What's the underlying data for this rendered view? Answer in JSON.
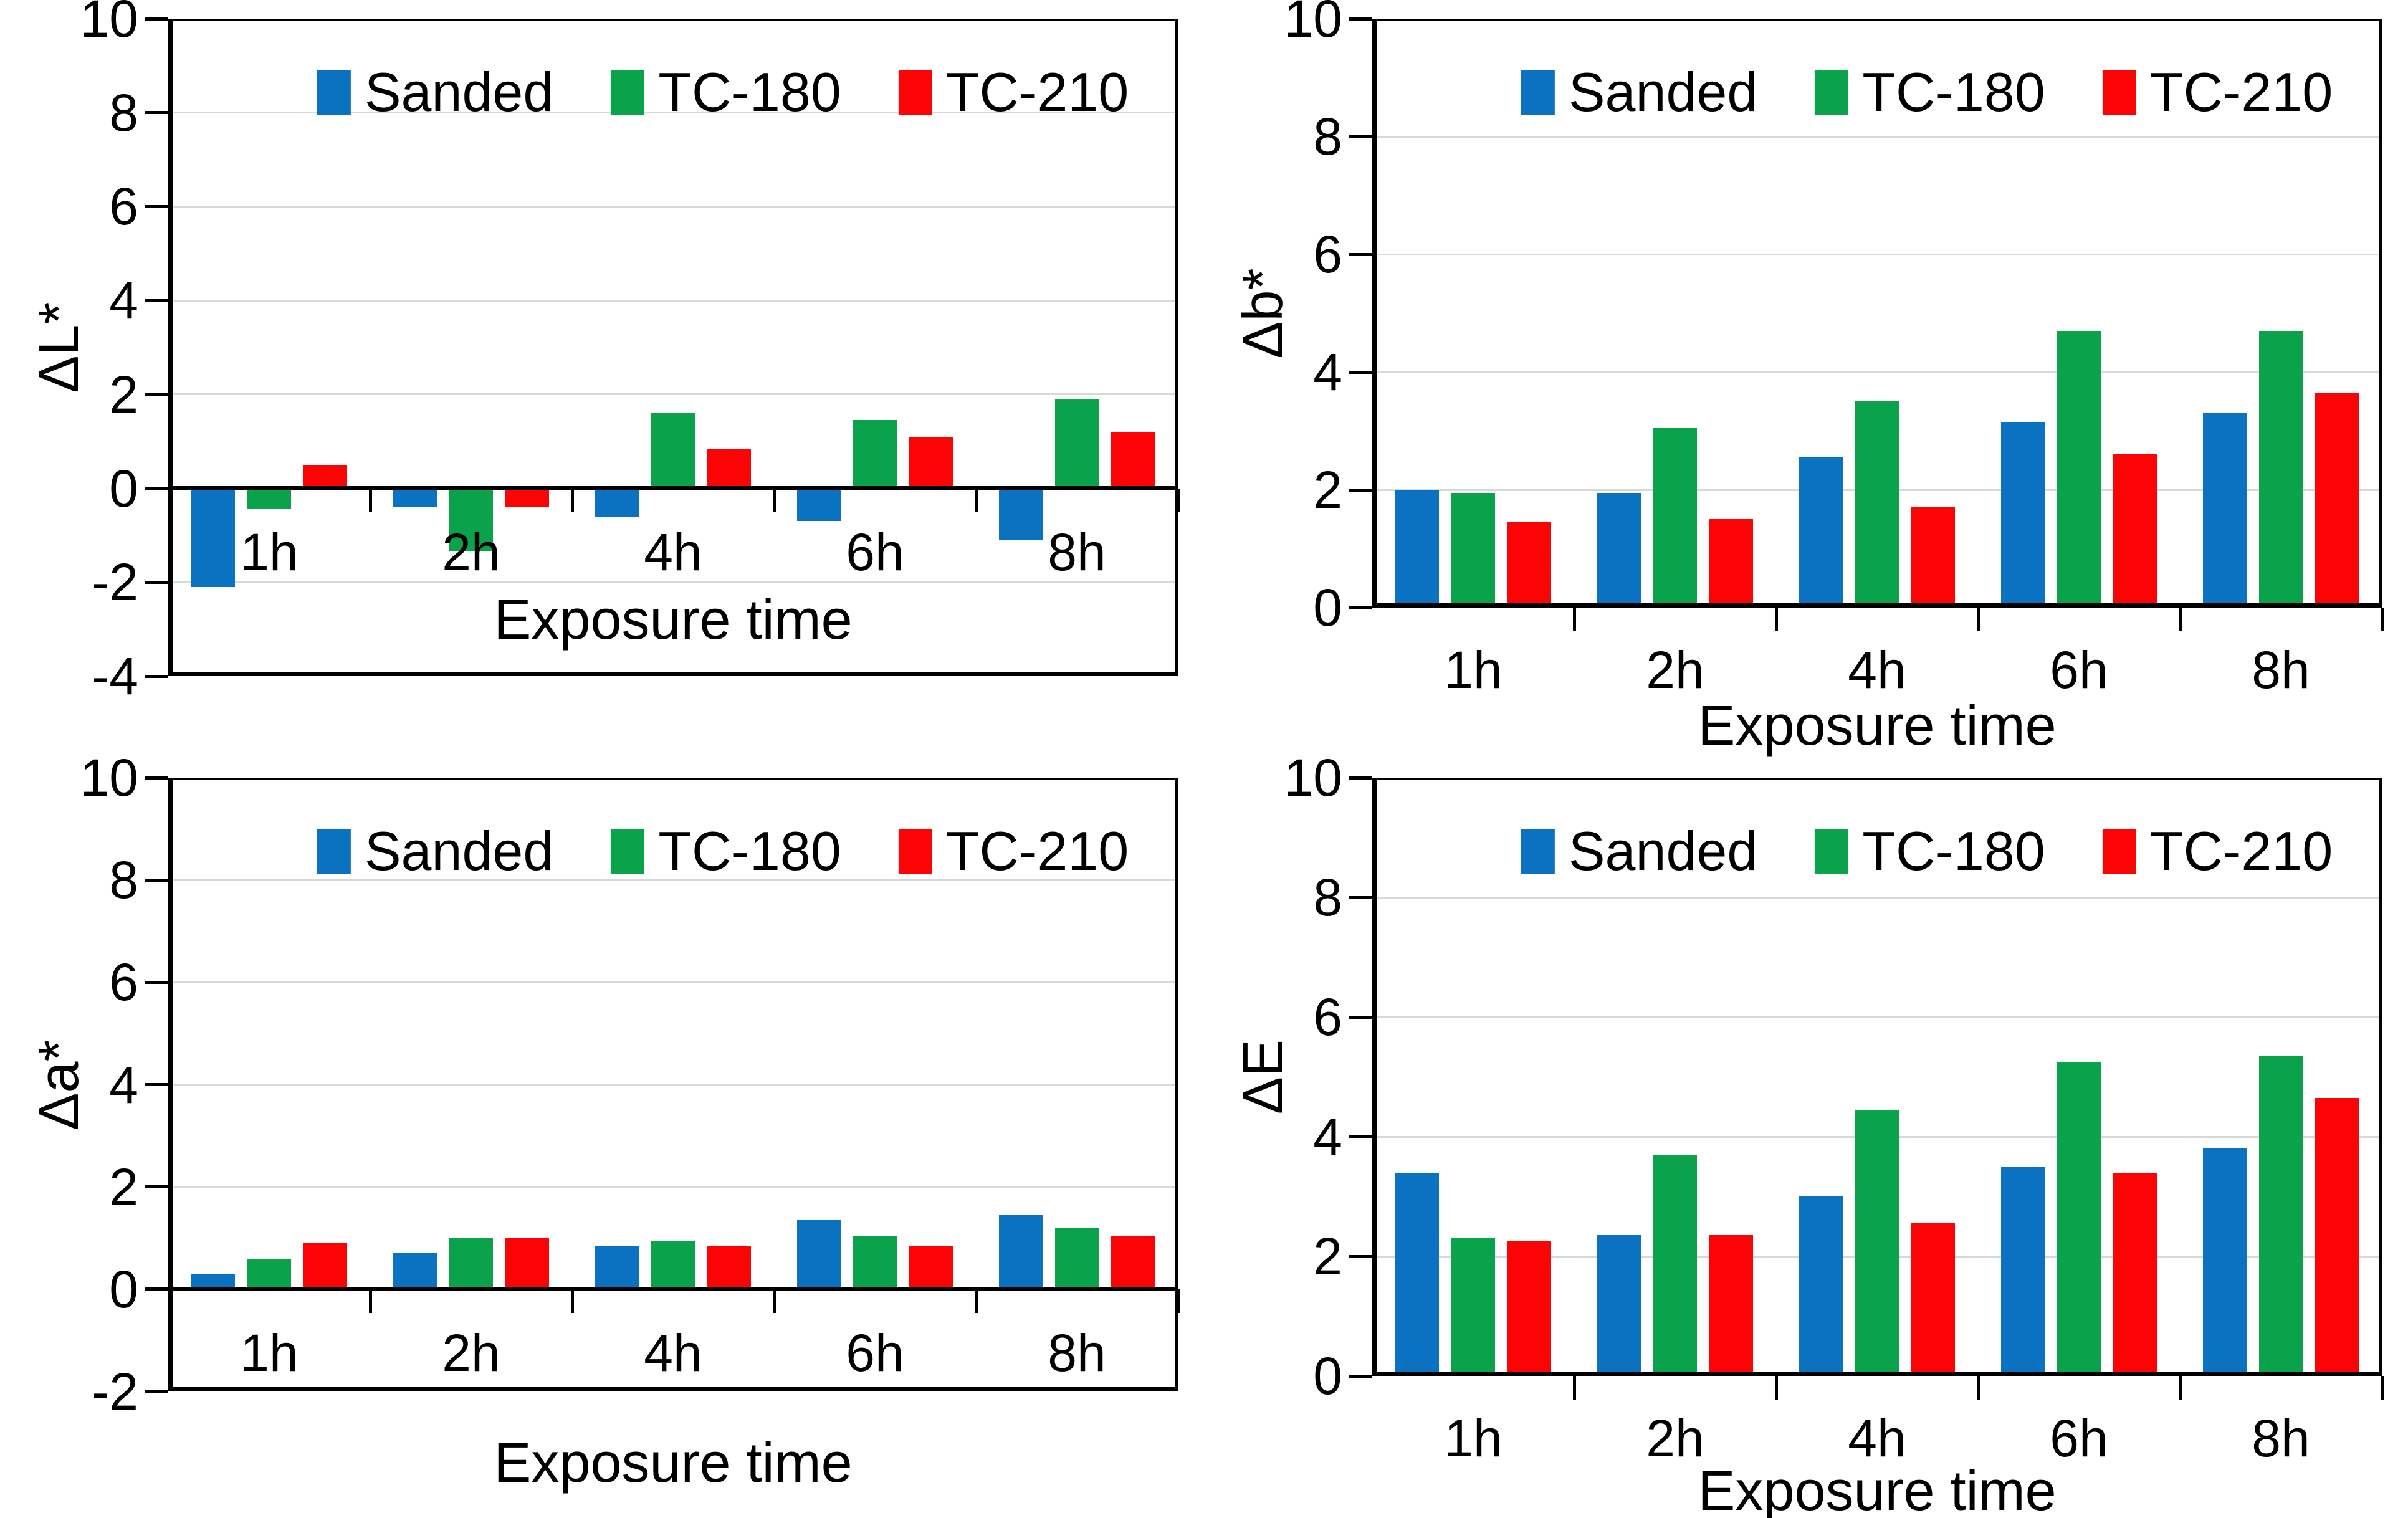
{
  "figure": {
    "background": "#ffffff",
    "x_axis_title": "Exposure time",
    "categories": [
      "1h",
      "2h",
      "4h",
      "6h",
      "8h"
    ],
    "legend_labels": [
      "Sanded",
      "TC-180",
      "TC-210"
    ]
  },
  "colors": {
    "sanded": "#0b72c2",
    "tc180": "#0aa24a",
    "tc210": "#fc0406",
    "gridline": "#d8d8d8",
    "axis": "#000000",
    "text": "#000000"
  },
  "chart_data": [
    {
      "type": "bar",
      "title": "",
      "ylabel": "ΔL*",
      "xlabel": "Exposure time",
      "categories": [
        "1h",
        "2h",
        "4h",
        "6h",
        "8h"
      ],
      "series": [
        {
          "name": "Sanded",
          "color": "#0b72c2",
          "values": [
            -2.1,
            -0.4,
            -0.6,
            -0.7,
            -1.1
          ]
        },
        {
          "name": "TC-180",
          "color": "#0aa24a",
          "values": [
            -0.45,
            -1.35,
            1.6,
            1.45,
            1.9
          ]
        },
        {
          "name": "TC-210",
          "color": "#fc0406",
          "values": [
            0.5,
            -0.4,
            0.85,
            1.1,
            1.2
          ]
        }
      ],
      "ylim": [
        -4,
        10
      ],
      "ystep": 2,
      "grid": true,
      "legend_position": "top-inside"
    },
    {
      "type": "bar",
      "title": "",
      "ylabel": "Δb*",
      "xlabel": "Exposure time",
      "categories": [
        "1h",
        "2h",
        "4h",
        "6h",
        "8h"
      ],
      "series": [
        {
          "name": "Sanded",
          "color": "#0b72c2",
          "values": [
            2.0,
            1.95,
            2.55,
            3.15,
            3.3
          ]
        },
        {
          "name": "TC-180",
          "color": "#0aa24a",
          "values": [
            1.95,
            3.05,
            3.5,
            4.7,
            4.7
          ]
        },
        {
          "name": "TC-210",
          "color": "#fc0406",
          "values": [
            1.45,
            1.5,
            1.7,
            2.6,
            3.65
          ]
        }
      ],
      "ylim": [
        0,
        10
      ],
      "ystep": 2,
      "grid": true,
      "legend_position": "top-inside"
    },
    {
      "type": "bar",
      "title": "",
      "ylabel": "Δa*",
      "xlabel": "Exposure time",
      "categories": [
        "1h",
        "2h",
        "4h",
        "6h",
        "8h"
      ],
      "series": [
        {
          "name": "Sanded",
          "color": "#0b72c2",
          "values": [
            0.3,
            0.7,
            0.85,
            1.35,
            1.45
          ]
        },
        {
          "name": "TC-180",
          "color": "#0aa24a",
          "values": [
            0.6,
            1.0,
            0.95,
            1.05,
            1.2
          ]
        },
        {
          "name": "TC-210",
          "color": "#fc0406",
          "values": [
            0.9,
            1.0,
            0.85,
            0.85,
            1.05
          ]
        }
      ],
      "ylim": [
        -2,
        10
      ],
      "ystep": 2,
      "grid": true,
      "legend_position": "top-inside"
    },
    {
      "type": "bar",
      "title": "",
      "ylabel": "ΔE",
      "xlabel": "Exposure time",
      "categories": [
        "1h",
        "2h",
        "4h",
        "6h",
        "8h"
      ],
      "series": [
        {
          "name": "Sanded",
          "color": "#0b72c2",
          "values": [
            3.4,
            2.35,
            3.0,
            3.5,
            3.8
          ]
        },
        {
          "name": "TC-180",
          "color": "#0aa24a",
          "values": [
            2.3,
            3.7,
            4.45,
            5.25,
            5.35
          ]
        },
        {
          "name": "TC-210",
          "color": "#fc0406",
          "values": [
            2.25,
            2.35,
            2.55,
            3.4,
            4.65
          ]
        }
      ],
      "ylim": [
        0,
        10
      ],
      "ystep": 2,
      "grid": true,
      "legend_position": "top-inside"
    }
  ]
}
